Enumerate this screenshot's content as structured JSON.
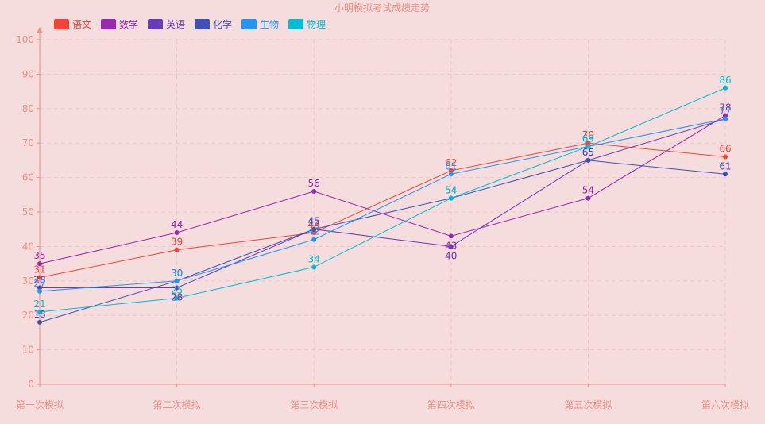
{
  "chart_data": {
    "type": "line",
    "title": "小明模拟考试成绩走势",
    "categories": [
      "第一次模拟",
      "第二次模拟",
      "第三次模拟",
      "第四次模拟",
      "第五次模拟",
      "第六次模拟"
    ],
    "ylim": [
      0,
      100
    ],
    "yticks": [
      0,
      10,
      20,
      30,
      40,
      50,
      60,
      70,
      80,
      90,
      100
    ],
    "grid": true,
    "legend_position": "top-left",
    "series": [
      {
        "name": "语文",
        "color": "#f44336",
        "values": [
          31,
          39,
          44,
          62,
          70,
          66
        ]
      },
      {
        "name": "数学",
        "color": "#9c27b0",
        "values": [
          35,
          44,
          56,
          43,
          54,
          78
        ]
      },
      {
        "name": "英语",
        "color": "#673ab7",
        "values": [
          28,
          28,
          45,
          40,
          65,
          77
        ]
      },
      {
        "name": "化学",
        "color": "#3f51b5",
        "values": [
          18,
          30,
          45,
          54,
          65,
          61
        ]
      },
      {
        "name": "生物",
        "color": "#2196f3",
        "values": [
          27,
          30,
          42,
          61,
          69,
          77
        ]
      },
      {
        "name": "物理",
        "color": "#00bcd4",
        "values": [
          21,
          25,
          34,
          54,
          69,
          86
        ]
      }
    ]
  }
}
